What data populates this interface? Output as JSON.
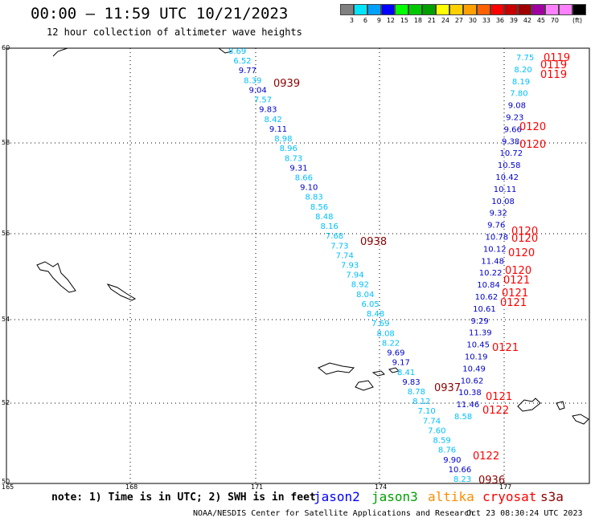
{
  "title": "00:00 – 11:59 UTC 10/21/2023",
  "subtitle": "12 hour collection of altimeter wave heights",
  "scale": {
    "colors": [
      "#808080",
      "#00e5ff",
      "#00a0ff",
      "#0000ff",
      "#00ff00",
      "#00c800",
      "#00a000",
      "#ffff00",
      "#ffd000",
      "#ffa000",
      "#ff6000",
      "#ff0000",
      "#c80000",
      "#a00000",
      "#a000a0",
      "#ff80ff",
      "#ff80ff",
      "#000000"
    ],
    "labels": [
      "3",
      "6",
      "9",
      "12",
      "15",
      "18",
      "21",
      "24",
      "27",
      "30",
      "33",
      "36",
      "39",
      "42",
      "45",
      "70"
    ],
    "unit": "(ft)"
  },
  "axes": {
    "lat_labels": [
      "60",
      "58",
      "56",
      "54",
      "52",
      "50"
    ],
    "lon_labels": [
      "165",
      "168",
      "171",
      "174",
      "177"
    ]
  },
  "passes": [
    {
      "time": "0939",
      "color": "#8b0000"
    },
    {
      "time": "0938",
      "color": "#8b0000"
    },
    {
      "time": "0937",
      "color": "#8b0000"
    },
    {
      "time": "0936",
      "color": "#8b0000"
    },
    {
      "time": "0119",
      "color": "#ff0000"
    },
    {
      "time": "0119",
      "color": "#ff0000"
    },
    {
      "time": "0119",
      "color": "#ff0000"
    },
    {
      "time": "0120",
      "color": "#ff0000"
    },
    {
      "time": "0120",
      "color": "#ff0000"
    },
    {
      "time": "0120",
      "color": "#ff0000"
    },
    {
      "time": "0120",
      "color": "#ff0000"
    },
    {
      "time": "0120",
      "color": "#ff0000"
    },
    {
      "time": "0120",
      "color": "#ff0000"
    },
    {
      "time": "0121",
      "color": "#ff0000"
    },
    {
      "time": "0121",
      "color": "#ff0000"
    },
    {
      "time": "0121",
      "color": "#ff0000"
    },
    {
      "time": "0121",
      "color": "#ff0000"
    },
    {
      "time": "0121",
      "color": "#ff0000"
    },
    {
      "time": "0122",
      "color": "#ff0000"
    },
    {
      "time": "0122",
      "color": "#ff0000"
    }
  ],
  "track_a": [
    {
      "v": "8.69",
      "c": "#00bfff"
    },
    {
      "v": "6.52",
      "c": "#00bfff"
    },
    {
      "v": "9.77",
      "c": "#0000cd"
    },
    {
      "v": "8.39",
      "c": "#00bfff"
    },
    {
      "v": "9.04",
      "c": "#0000cd"
    },
    {
      "v": "7.57",
      "c": "#00bfff"
    },
    {
      "v": "9.83",
      "c": "#0000cd"
    },
    {
      "v": "8.42",
      "c": "#00bfff"
    },
    {
      "v": "9.11",
      "c": "#0000cd"
    },
    {
      "v": "8.98",
      "c": "#00bfff"
    },
    {
      "v": "8.96",
      "c": "#00bfff"
    },
    {
      "v": "8.73",
      "c": "#00bfff"
    },
    {
      "v": "9.31",
      "c": "#0000cd"
    },
    {
      "v": "8.66",
      "c": "#00bfff"
    },
    {
      "v": "9.10",
      "c": "#0000cd"
    },
    {
      "v": "8.83",
      "c": "#00bfff"
    },
    {
      "v": "8.56",
      "c": "#00bfff"
    },
    {
      "v": "8.48",
      "c": "#00bfff"
    },
    {
      "v": "8.16",
      "c": "#00bfff"
    },
    {
      "v": "7.68",
      "c": "#00bfff"
    },
    {
      "v": "7.73",
      "c": "#00bfff"
    },
    {
      "v": "7.74",
      "c": "#00bfff"
    },
    {
      "v": "7.93",
      "c": "#00bfff"
    },
    {
      "v": "7.94",
      "c": "#00bfff"
    },
    {
      "v": "8.92",
      "c": "#00bfff"
    },
    {
      "v": "8.04",
      "c": "#00bfff"
    },
    {
      "v": "6.05",
      "c": "#00bfff"
    },
    {
      "v": "8.48",
      "c": "#00bfff"
    },
    {
      "v": "7.69",
      "c": "#00bfff"
    },
    {
      "v": "8.08",
      "c": "#00bfff"
    },
    {
      "v": "8.22",
      "c": "#00bfff"
    },
    {
      "v": "9.69",
      "c": "#0000cd"
    },
    {
      "v": "9.17",
      "c": "#0000cd"
    },
    {
      "v": "8.41",
      "c": "#00bfff"
    },
    {
      "v": "9.83",
      "c": "#0000cd"
    },
    {
      "v": "8.78",
      "c": "#00bfff"
    },
    {
      "v": "8.12",
      "c": "#00bfff"
    },
    {
      "v": "7.10",
      "c": "#00bfff"
    },
    {
      "v": "7.74",
      "c": "#00bfff"
    },
    {
      "v": "7.60",
      "c": "#00bfff"
    },
    {
      "v": "8.59",
      "c": "#00bfff"
    },
    {
      "v": "8.76",
      "c": "#00bfff"
    },
    {
      "v": "9.90",
      "c": "#0000cd"
    },
    {
      "v": "10.66",
      "c": "#0000cd"
    },
    {
      "v": "8.23",
      "c": "#00bfff"
    }
  ],
  "track_b": [
    {
      "v": "7.75",
      "c": "#00bfff"
    },
    {
      "v": "8.20",
      "c": "#00bfff"
    },
    {
      "v": "8.19",
      "c": "#00bfff"
    },
    {
      "v": "7.80",
      "c": "#00bfff"
    },
    {
      "v": "9.08",
      "c": "#0000cd"
    },
    {
      "v": "9.23",
      "c": "#0000cd"
    },
    {
      "v": "9.66",
      "c": "#0000cd"
    },
    {
      "v": "9.38",
      "c": "#0000cd"
    },
    {
      "v": "10.72",
      "c": "#0000cd"
    },
    {
      "v": "10.58",
      "c": "#0000cd"
    },
    {
      "v": "10.42",
      "c": "#0000cd"
    },
    {
      "v": "10.11",
      "c": "#0000cd"
    },
    {
      "v": "10.08",
      "c": "#0000cd"
    },
    {
      "v": "9.32",
      "c": "#0000cd"
    },
    {
      "v": "9.76",
      "c": "#0000cd"
    },
    {
      "v": "10.78",
      "c": "#0000cd"
    },
    {
      "v": "10.12",
      "c": "#0000cd"
    },
    {
      "v": "11.48",
      "c": "#0000cd"
    },
    {
      "v": "10.22",
      "c": "#0000cd"
    },
    {
      "v": "10.84",
      "c": "#0000cd"
    },
    {
      "v": "10.62",
      "c": "#0000cd"
    },
    {
      "v": "10.61",
      "c": "#0000cd"
    },
    {
      "v": "9.29",
      "c": "#0000cd"
    },
    {
      "v": "11.39",
      "c": "#0000cd"
    },
    {
      "v": "10.45",
      "c": "#0000cd"
    },
    {
      "v": "10.19",
      "c": "#0000cd"
    },
    {
      "v": "10.49",
      "c": "#0000cd"
    },
    {
      "v": "10.62",
      "c": "#0000cd"
    },
    {
      "v": "10.38",
      "c": "#0000cd"
    },
    {
      "v": "11.46",
      "c": "#0000cd"
    },
    {
      "v": "8.58",
      "c": "#00bfff"
    }
  ],
  "footer": {
    "note": "note: 1) Time is in UTC; 2) SWH is in feet",
    "legend": [
      {
        "label": "jason2",
        "color": "#0000ff"
      },
      {
        "label": "jason3",
        "color": "#00a000"
      },
      {
        "label": "altika",
        "color": "#ff8c00"
      },
      {
        "label": "cryosat",
        "color": "#ff0000"
      },
      {
        "label": "s3a",
        "color": "#8b0000"
      }
    ],
    "credit": "NOAA/NESDIS Center for Satellite Applications and Research",
    "generated": "Oct 23 08:30:24 UTC 2023"
  }
}
